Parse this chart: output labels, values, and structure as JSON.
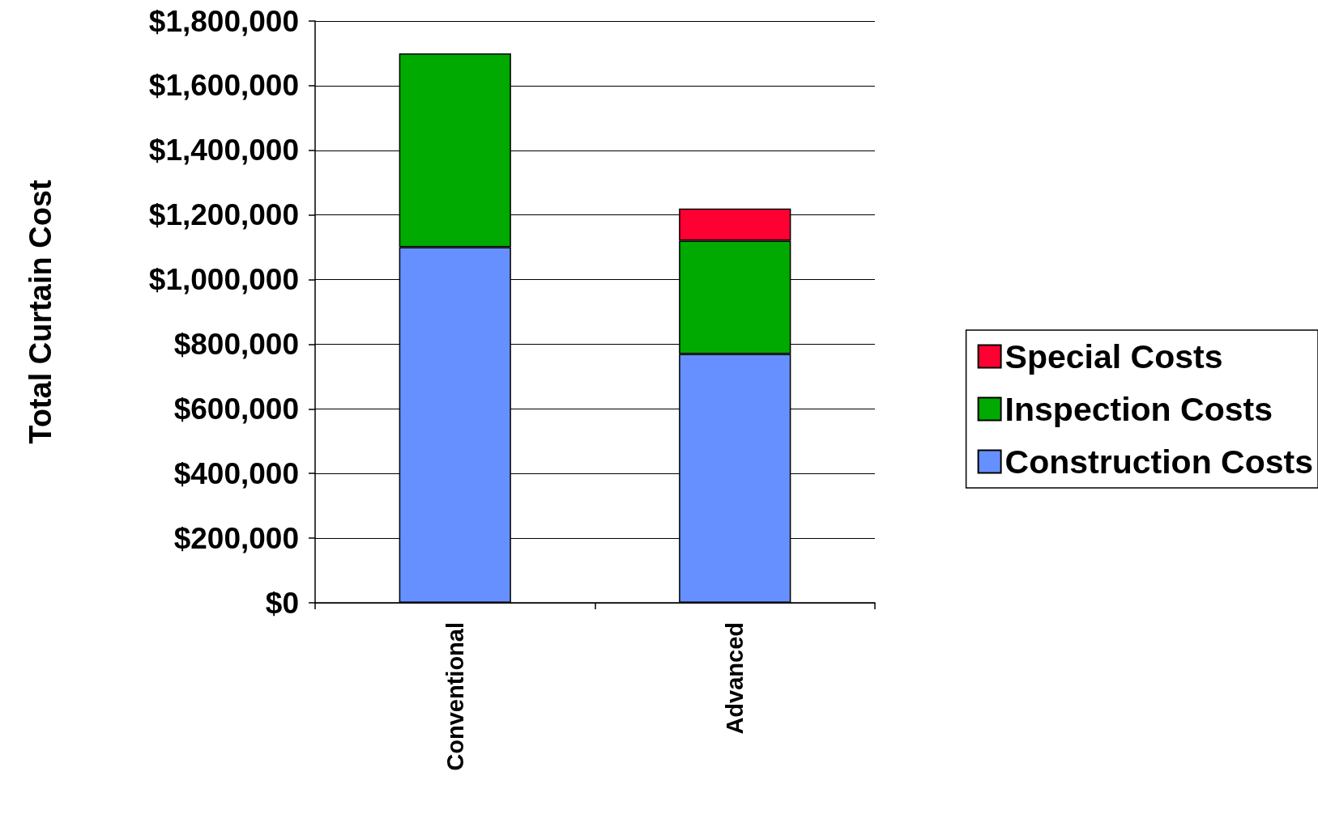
{
  "chart_data": {
    "type": "bar",
    "stacked": true,
    "ylabel": "Total Curtain Cost",
    "categories": [
      "Conventional",
      "Advanced"
    ],
    "series": [
      {
        "name": "Construction Costs",
        "color": "#6690ff",
        "values": [
          1100000,
          770000
        ]
      },
      {
        "name": "Inspection Costs",
        "color": "#00aa00",
        "values": [
          600000,
          350000
        ]
      },
      {
        "name": "Special Costs",
        "color": "#ff0033",
        "values": [
          null,
          100000
        ]
      }
    ],
    "ylim": [
      0,
      1800000
    ],
    "yticks": [
      {
        "value": 0,
        "label": "$0"
      },
      {
        "value": 200000,
        "label": "$200,000"
      },
      {
        "value": 400000,
        "label": "$400,000"
      },
      {
        "value": 600000,
        "label": "$600,000"
      },
      {
        "value": 800000,
        "label": "$800,000"
      },
      {
        "value": 1000000,
        "label": "$1,000,000"
      },
      {
        "value": 1200000,
        "label": "$1,200,000"
      },
      {
        "value": 1400000,
        "label": "$1,400,000"
      },
      {
        "value": 1600000,
        "label": "$1,600,000"
      },
      {
        "value": 1800000,
        "label": "$1,800,000"
      }
    ],
    "grid": "y",
    "legend": "right"
  }
}
